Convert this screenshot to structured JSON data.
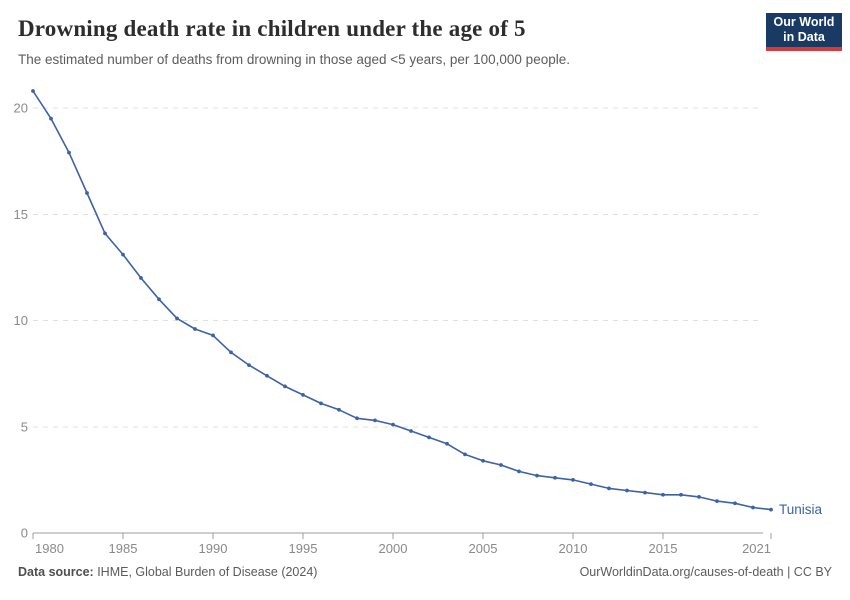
{
  "header": {
    "title": "Drowning death rate in children under the age of 5",
    "subtitle": "The estimated number of deaths from drowning in those aged <5 years, per 100,000 people.",
    "logo": {
      "line1": "Our World",
      "line2": "in Data"
    }
  },
  "footer": {
    "source_label": "Data source:",
    "source_rest": " IHME, Global Burden of Disease (2024)",
    "credit": "OurWorldinData.org/causes-of-death | CC BY"
  },
  "colors": {
    "line": "#3d62a5",
    "grid": "#e0e0e0",
    "axis": "#9c9c9c",
    "tick_label": "#8a8a8a",
    "logo_bg": "#183a63",
    "logo_red": "#d73a3a"
  },
  "chart_data": {
    "type": "line",
    "title": "Drowning death rate in children under the age of 5",
    "subtitle": "The estimated number of deaths from drowning in those aged <5 years, per 100,000 people.",
    "xlabel": "",
    "ylabel": "",
    "xlim": [
      1980,
      2021
    ],
    "ylim": [
      0,
      21
    ],
    "xticks": [
      1980,
      1985,
      1990,
      1995,
      2000,
      2005,
      2010,
      2015,
      2021
    ],
    "yticks": [
      0,
      5,
      10,
      15,
      20
    ],
    "grid": "horizontal dashed",
    "legend_position": "end-of-line label",
    "series": [
      {
        "name": "Tunisia",
        "color": "#3d62a5",
        "x": [
          1980,
          1981,
          1982,
          1983,
          1984,
          1985,
          1986,
          1987,
          1988,
          1989,
          1990,
          1991,
          1992,
          1993,
          1994,
          1995,
          1996,
          1997,
          1998,
          1999,
          2000,
          2001,
          2002,
          2003,
          2004,
          2005,
          2006,
          2007,
          2008,
          2009,
          2010,
          2011,
          2012,
          2013,
          2014,
          2015,
          2016,
          2017,
          2018,
          2019,
          2020,
          2021
        ],
        "values": [
          20.8,
          19.5,
          17.9,
          16.0,
          14.1,
          13.1,
          12.0,
          11.0,
          10.1,
          9.6,
          9.3,
          8.5,
          7.9,
          7.4,
          6.9,
          6.5,
          6.1,
          5.8,
          5.4,
          5.3,
          5.1,
          4.8,
          4.5,
          4.2,
          3.7,
          3.4,
          3.2,
          2.9,
          2.7,
          2.6,
          2.5,
          2.3,
          2.1,
          2.0,
          1.9,
          1.8,
          1.8,
          1.7,
          1.5,
          1.4,
          1.2,
          1.1
        ]
      }
    ]
  }
}
